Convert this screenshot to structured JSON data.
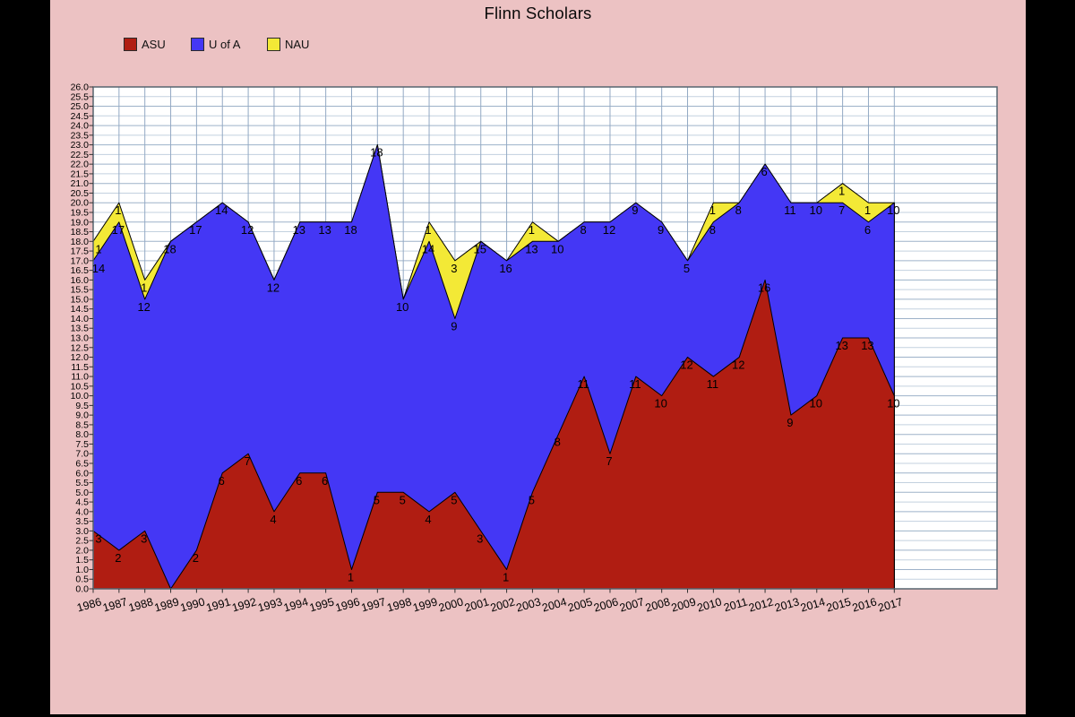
{
  "chart_data": {
    "type": "area",
    "stacked": true,
    "title": "Flinn Scholars",
    "categories": [
      "1986",
      "1987",
      "1988",
      "1989",
      "1990",
      "1991",
      "1992",
      "1993",
      "1994",
      "1995",
      "1996",
      "1997",
      "1998",
      "1999",
      "2000",
      "2001",
      "2002",
      "2003",
      "2004",
      "2005",
      "2006",
      "2007",
      "2008",
      "2009",
      "2010",
      "2011",
      "2012",
      "2013",
      "2014",
      "2015",
      "2016",
      "2017"
    ],
    "series": [
      {
        "name": "ASU",
        "color": "#b01d12",
        "values": [
          3,
          2,
          3,
          0,
          2,
          6,
          7,
          4,
          6,
          6,
          1,
          5,
          5,
          4,
          5,
          3,
          1,
          5,
          8,
          11,
          7,
          11,
          10,
          12,
          11,
          12,
          16,
          9,
          10,
          13,
          13,
          10
        ]
      },
      {
        "name": "U of A",
        "color": "#4437f5",
        "values": [
          14,
          17,
          12,
          18,
          17,
          14,
          12,
          12,
          13,
          13,
          18,
          18,
          10,
          14,
          9,
          15,
          16,
          13,
          10,
          8,
          12,
          9,
          9,
          5,
          8,
          8,
          6,
          11,
          10,
          7,
          6,
          10
        ]
      },
      {
        "name": "NAU",
        "color": "#f3e936",
        "values": [
          1,
          1,
          1,
          0,
          0,
          0,
          0,
          0,
          0,
          0,
          0,
          0,
          0,
          1,
          3,
          0,
          0,
          1,
          0,
          0,
          0,
          0,
          0,
          0,
          1,
          0,
          0,
          0,
          0,
          1,
          1,
          0
        ]
      }
    ],
    "xlabel": "",
    "ylabel": "",
    "ylim": [
      0,
      26
    ],
    "ytick_step": 0.5,
    "ytick_format_decimals": 1,
    "grid": true,
    "legend_position": "top-left",
    "style": {
      "plot_background": "#ffffff",
      "page_background": "#ecc2c3",
      "letterbox_color": "#000000",
      "grid_minor": "#c3d1df",
      "grid_major": "#9db2c9",
      "grid_vertical": "#93a9c4",
      "plot_border": "#56646f",
      "axis_tick_color": "#333333",
      "area_outline": "#000000",
      "label_color": "#000000"
    }
  }
}
